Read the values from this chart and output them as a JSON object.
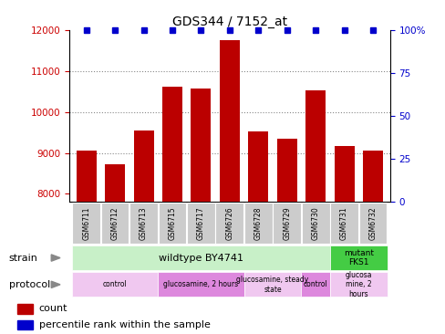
{
  "title": "GDS344 / 7152_at",
  "samples": [
    "GSM6711",
    "GSM6712",
    "GSM6713",
    "GSM6715",
    "GSM6717",
    "GSM6726",
    "GSM6728",
    "GSM6729",
    "GSM6730",
    "GSM6731",
    "GSM6732"
  ],
  "counts": [
    9050,
    8720,
    9550,
    10620,
    10580,
    11750,
    9530,
    9350,
    10530,
    9170,
    9050
  ],
  "percentiles": [
    100,
    100,
    100,
    100,
    100,
    100,
    100,
    100,
    100,
    100,
    100
  ],
  "ylim_left": [
    7800,
    12000
  ],
  "ylim_right": [
    0,
    100
  ],
  "bar_color": "#bb0000",
  "dot_color": "#0000cc",
  "strain_wildtype": {
    "label": "wildtype BY4741",
    "start": 0,
    "end": 9,
    "color": "#c8f0c8"
  },
  "strain_mutant": {
    "label": "mutant\nFKS1",
    "start": 9,
    "end": 11,
    "color": "#44cc44"
  },
  "protocols": [
    {
      "label": "control",
      "start": 0,
      "end": 3,
      "color": "#f0c8f0"
    },
    {
      "label": "glucosamine, 2 hours",
      "start": 3,
      "end": 6,
      "color": "#dd88dd"
    },
    {
      "label": "glucosamine, steady\nstate",
      "start": 6,
      "end": 8,
      "color": "#f0c8f0"
    },
    {
      "label": "control",
      "start": 8,
      "end": 9,
      "color": "#dd88dd"
    },
    {
      "label": "glucosa\nmine, 2\nhours",
      "start": 9,
      "end": 11,
      "color": "#f0c8f0"
    }
  ],
  "legend_count_color": "#bb0000",
  "legend_dot_color": "#0000cc",
  "bg_color": "#ffffff",
  "ytick_left": [
    8000,
    9000,
    10000,
    11000,
    12000
  ],
  "ytick_right": [
    0,
    25,
    50,
    75,
    100
  ],
  "grid_yticks": [
    9000,
    10000,
    11000
  ],
  "grid_color": "#888888",
  "bar_bottom": 7800
}
